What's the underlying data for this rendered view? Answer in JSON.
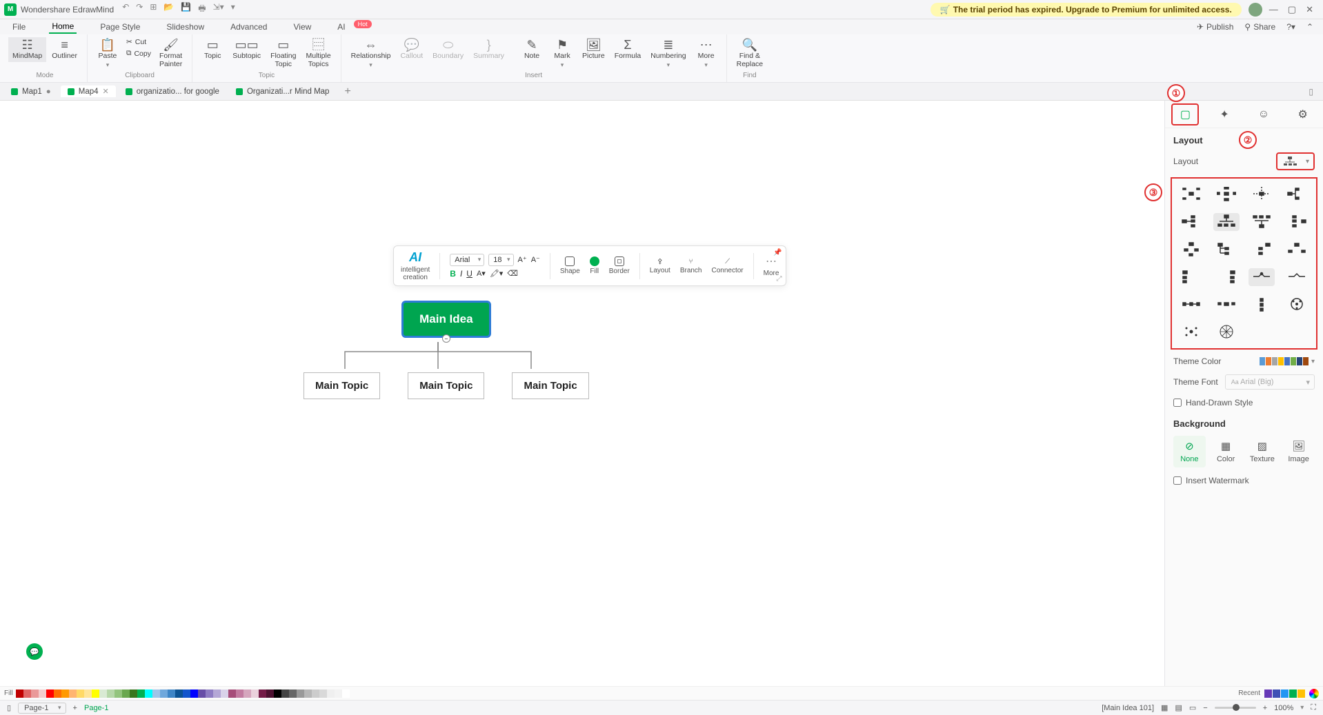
{
  "app": {
    "title": "Wondershare EdrawMind",
    "trial_banner": "The trial period has expired. Upgrade to Premium for unlimited access."
  },
  "menus": [
    "File",
    "Home",
    "Page Style",
    "Slideshow",
    "Advanced",
    "View",
    "AI"
  ],
  "menu_active": 1,
  "top_right": {
    "publish": "Publish",
    "share": "Share"
  },
  "ribbon": {
    "mode": {
      "mindmap": "MindMap",
      "outliner": "Outliner",
      "label": "Mode"
    },
    "clipboard": {
      "paste": "Paste",
      "cut": "Cut",
      "copy": "Copy",
      "format_painter": "Format\nPainter",
      "label": "Clipboard"
    },
    "topic": {
      "topic": "Topic",
      "subtopic": "Subtopic",
      "floating": "Floating\nTopic",
      "multiple": "Multiple\nTopics",
      "label": "Topic"
    },
    "insert": {
      "relationship": "Relationship",
      "callout": "Callout",
      "boundary": "Boundary",
      "summary": "Summary",
      "note": "Note",
      "mark": "Mark",
      "picture": "Picture",
      "formula": "Formula",
      "numbering": "Numbering",
      "more": "More",
      "label": "Insert"
    },
    "find": {
      "find_replace": "Find &\nReplace",
      "label": "Find"
    }
  },
  "tabs": [
    {
      "label": "Map1",
      "dirty": true,
      "active": false
    },
    {
      "label": "Map4",
      "dirty": false,
      "active": true,
      "closable": true
    },
    {
      "label": "organizatio... for google",
      "dirty": false,
      "active": false
    },
    {
      "label": "Organizati...r Mind Map",
      "dirty": false,
      "active": false
    }
  ],
  "float_toolbar": {
    "ai_label": "intelligent\ncreation",
    "font": "Arial",
    "size": "18",
    "shape": "Shape",
    "fill": "Fill",
    "border": "Border",
    "layout": "Layout",
    "branch": "Branch",
    "connector": "Connector",
    "more": "More"
  },
  "mindmap": {
    "root": "Main Idea",
    "root_color": "#00a550",
    "selection_color": "#2e7cd6",
    "children": [
      "Main Topic",
      "Main Topic",
      "Main Topic"
    ]
  },
  "side_panel": {
    "section_layout": "Layout",
    "layout_label": "Layout",
    "theme_color": "Theme Color",
    "theme_font": "Theme Font",
    "theme_font_value": "Arial (Big)",
    "hand_drawn": "Hand-Drawn Style",
    "background": "Background",
    "bg_options": [
      "None",
      "Color",
      "Texture",
      "Image"
    ],
    "insert_watermark": "Insert Watermark",
    "theme_colors": [
      "#5b9bd5",
      "#ed7d31",
      "#a5a5a5",
      "#ffc000",
      "#4472c4",
      "#70ad47",
      "#264478",
      "#9e480e"
    ]
  },
  "annotations": [
    "①",
    "②",
    "③"
  ],
  "palette_fill_label": "Fill",
  "palette": [
    "#c00000",
    "#e06666",
    "#ea9999",
    "#f4cccc",
    "#ff0000",
    "#ff6d01",
    "#ff9900",
    "#ffb570",
    "#ffd966",
    "#ffe599",
    "#ffff00",
    "#d9ead3",
    "#b6d7a8",
    "#93c47d",
    "#6aa84f",
    "#38761d",
    "#00b050",
    "#00ffff",
    "#9fc5e8",
    "#6fa8dc",
    "#3d85c6",
    "#0b5394",
    "#1155cc",
    "#0000ff",
    "#674ea7",
    "#8e7cc3",
    "#b4a7d6",
    "#d9d2e9",
    "#a64d79",
    "#c27ba0",
    "#d5a6bd",
    "#ead1dc",
    "#741b47",
    "#4c1130",
    "#000000",
    "#434343",
    "#666666",
    "#999999",
    "#b7b7b7",
    "#cccccc",
    "#d9d9d9",
    "#efefef",
    "#f3f3f3",
    "#ffffff"
  ],
  "recent_label": "Recent",
  "recent_colors": [
    "#673ab7",
    "#3f51b5",
    "#2196f3",
    "#00b050",
    "#ffc107"
  ],
  "statusbar": {
    "page_sel": "Page-1",
    "page_label": "Page-1",
    "node_info": "[Main Idea 101]",
    "zoom": "100%"
  }
}
